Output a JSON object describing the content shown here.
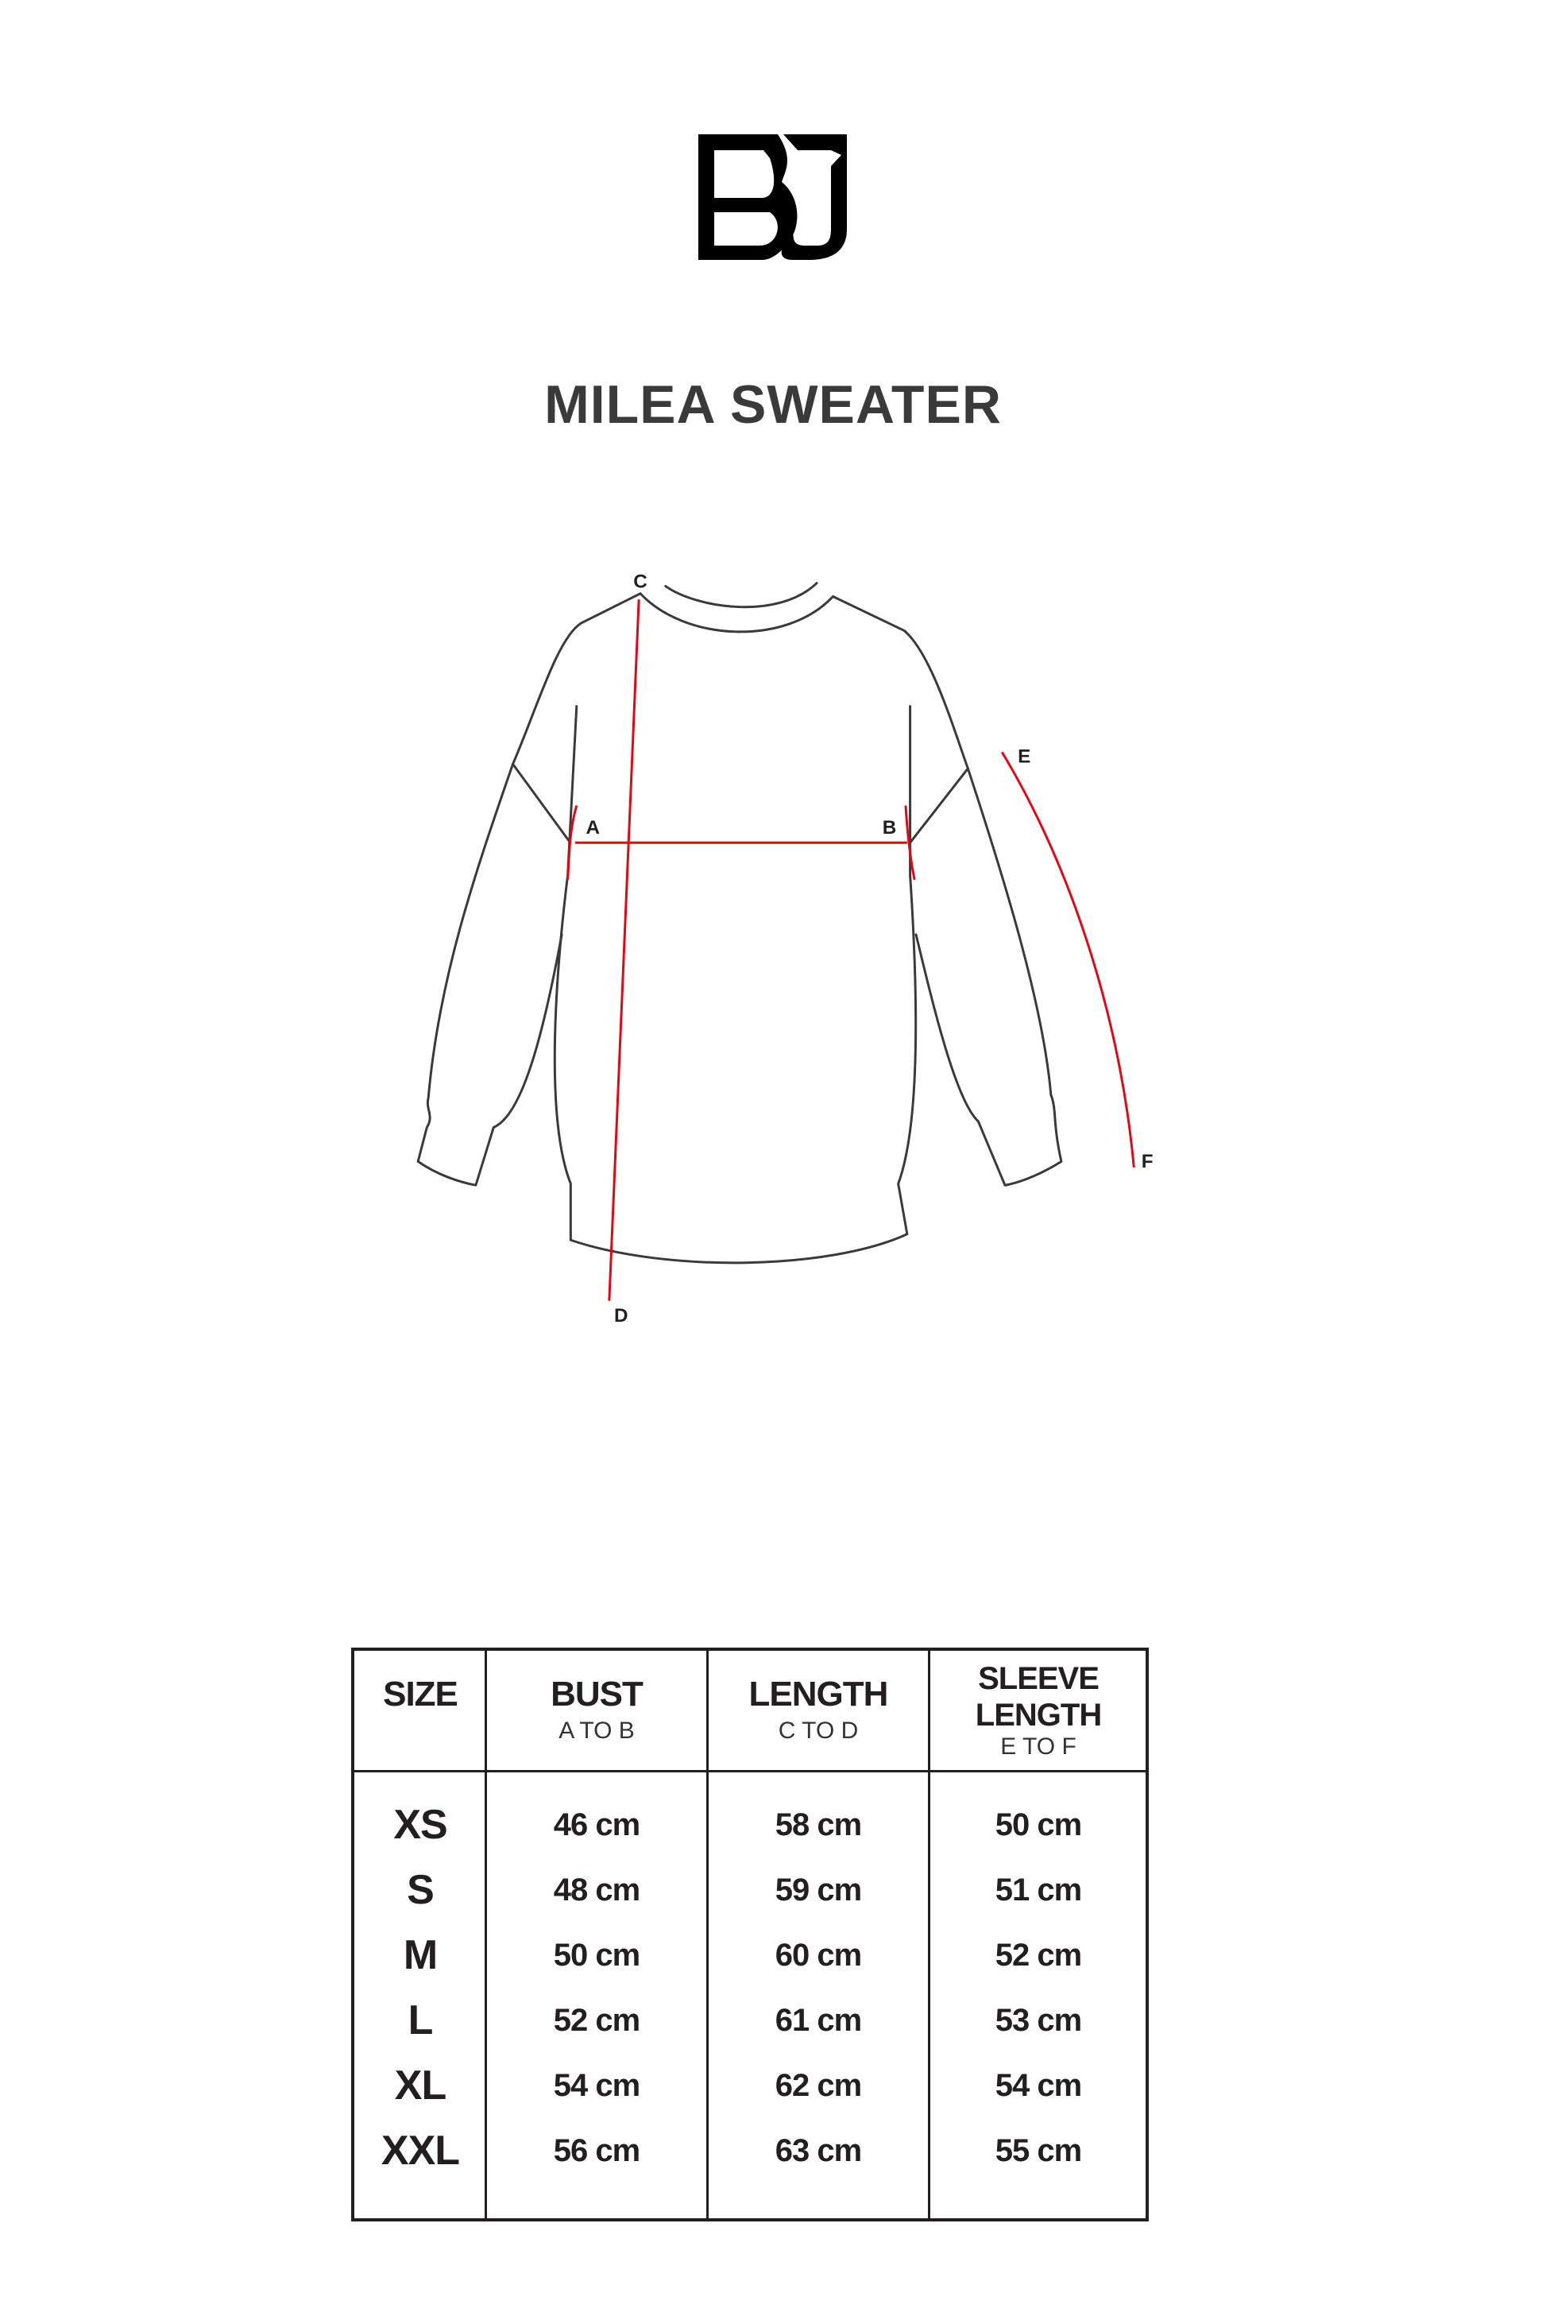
{
  "brand": {
    "logo_text": "BJ"
  },
  "title": "MILEA SWEATER",
  "diagram": {
    "labels": {
      "a": "A",
      "b": "B",
      "c": "C",
      "d": "D",
      "e": "E",
      "f": "F"
    },
    "colors": {
      "outline": "#3a3a3a",
      "measure": "#e30613"
    }
  },
  "table": {
    "headers": [
      {
        "title": "SIZE",
        "sub": ""
      },
      {
        "title": "BUST",
        "sub": "A TO B"
      },
      {
        "title": "LENGTH",
        "sub": "C TO D"
      },
      {
        "title": "SLEEVE LENGTH",
        "sub": "E TO F"
      }
    ],
    "rows": [
      {
        "size": "XS",
        "bust": "46 cm",
        "length": "58 cm",
        "sleeve": "50 cm"
      },
      {
        "size": "S",
        "bust": "48 cm",
        "length": "59 cm",
        "sleeve": "51 cm"
      },
      {
        "size": "M",
        "bust": "50 cm",
        "length": "60 cm",
        "sleeve": "52 cm"
      },
      {
        "size": "L",
        "bust": "52 cm",
        "length": "61 cm",
        "sleeve": "53 cm"
      },
      {
        "size": "XL",
        "bust": "54 cm",
        "length": "62 cm",
        "sleeve": "54 cm"
      },
      {
        "size": "XXL",
        "bust": "56 cm",
        "length": "63 cm",
        "sleeve": "55 cm"
      }
    ]
  }
}
